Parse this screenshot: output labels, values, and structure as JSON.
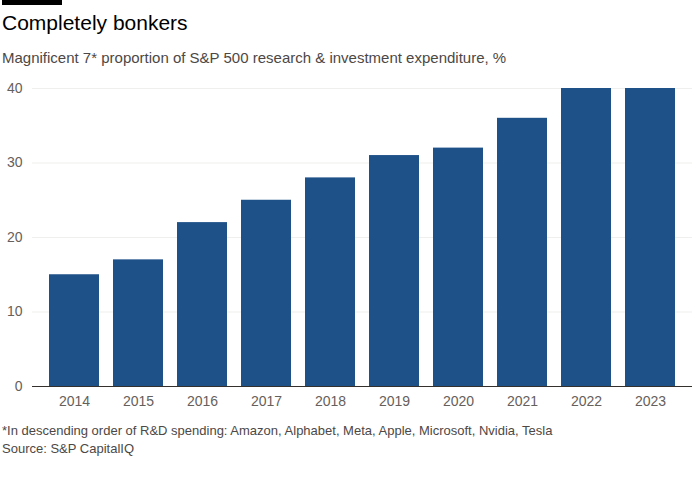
{
  "chart_data": {
    "type": "bar",
    "title": "Completely bonkers",
    "subtitle": "Magnificent 7* proportion of S&P 500 research & investment expenditure, %",
    "categories": [
      "2014",
      "2015",
      "2016",
      "2017",
      "2018",
      "2019",
      "2020",
      "2021",
      "2022",
      "2023"
    ],
    "values": [
      15,
      17,
      22,
      25,
      28,
      31,
      32,
      36,
      40,
      40
    ],
    "color": "#1f5189",
    "ylim": [
      0,
      40
    ],
    "yticks": [
      0,
      10,
      20,
      30,
      40
    ],
    "grid": true,
    "notes": [
      "*In descending order of R&D spending: Amazon, Alphabet, Meta, Apple, Microsoft, Nvidia, Tesla",
      "Source: S&P CapitalIQ"
    ]
  }
}
